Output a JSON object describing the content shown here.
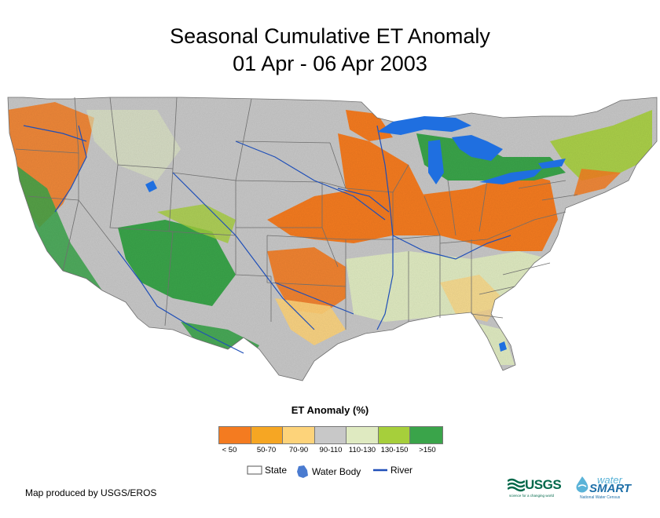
{
  "title": {
    "line1": "Seasonal Cumulative ET Anomaly",
    "line2": "01 Apr - 06 Apr 2003"
  },
  "legend": {
    "title": "ET Anomaly (%)",
    "classes": [
      {
        "label": "< 50",
        "color": "#f47b20"
      },
      {
        "label": "50-70",
        "color": "#f6a623"
      },
      {
        "label": "70-90",
        "color": "#fdd37a"
      },
      {
        "label": "90-110",
        "color": "#c8c8c8"
      },
      {
        "label": "110-130",
        "color": "#dfeac1"
      },
      {
        "label": "130-150",
        "color": "#a6cf3b"
      },
      {
        "label": ">150",
        "color": "#3aa44a"
      }
    ],
    "state_label": "State",
    "water_label": "Water Body",
    "river_label": "River"
  },
  "credit": "Map produced by USGS/EROS",
  "logos": {
    "usgs": "USGS",
    "usgs_tagline": "science for a changing world",
    "watersmart_top": "water",
    "watersmart_main": "SMART",
    "watersmart_sub": "National Water Census"
  },
  "colors": {
    "water": "#1f6fe0",
    "river": "#1f4fb8",
    "state_line": "#6e6e6e"
  }
}
